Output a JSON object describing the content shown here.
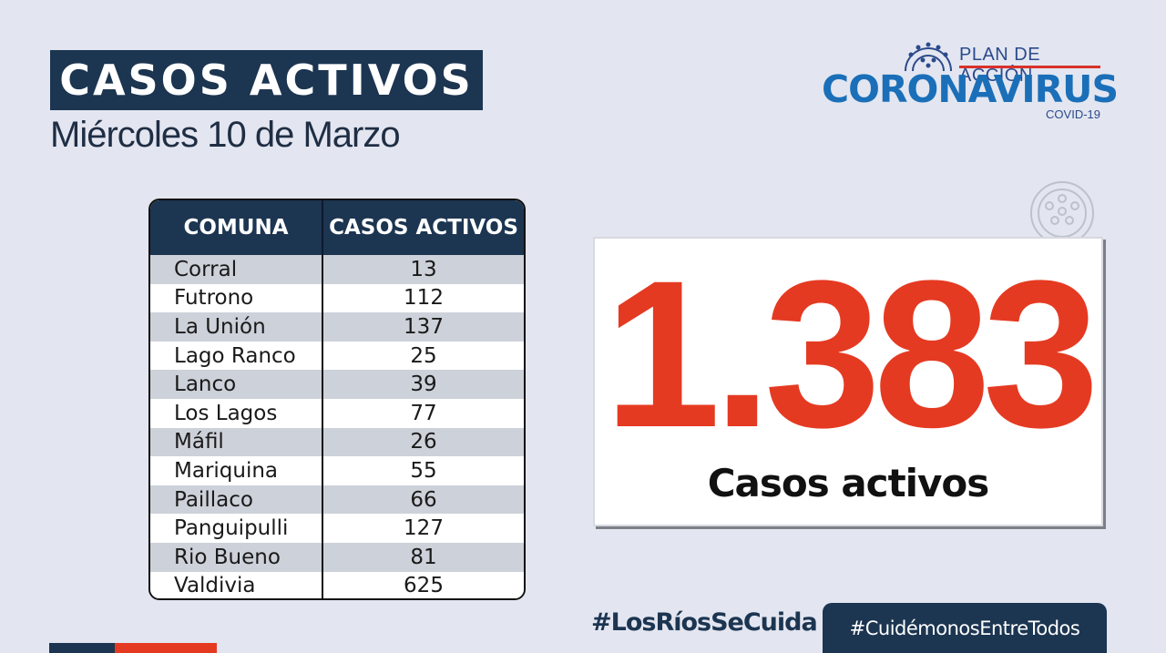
{
  "header": {
    "title": "CASOS ACTIVOS",
    "date": "Miércoles 10 de Marzo"
  },
  "logo": {
    "line1": "PLAN DE ACCIÓN",
    "line2": "CORONAVIRUS",
    "line3": "COVID-19",
    "icon": "coronavirus-icon"
  },
  "table": {
    "headers": [
      "COMUNA",
      "CASOS ACTIVOS"
    ],
    "rows": [
      [
        "Corral",
        "13"
      ],
      [
        "Futrono",
        "112"
      ],
      [
        "La Unión",
        "137"
      ],
      [
        "Lago Ranco",
        "25"
      ],
      [
        "Lanco",
        "39"
      ],
      [
        "Los Lagos",
        "77"
      ],
      [
        "Máfil",
        "26"
      ],
      [
        "Mariquina",
        "55"
      ],
      [
        "Paillaco",
        "66"
      ],
      [
        "Panguipulli",
        "127"
      ],
      [
        "Rio Bueno",
        "81"
      ],
      [
        "Valdivia",
        "625"
      ]
    ]
  },
  "total": {
    "value": "1.383",
    "label": "Casos activos"
  },
  "footer": {
    "hashtag_primary": "#LosRíosSeCuida",
    "hashtag_secondary": "#CuidémonosEntreTodos"
  },
  "colors": {
    "navy": "#1c3551",
    "red": "#e53a22",
    "blue": "#1b6fb8",
    "background": "#e3e6f0"
  }
}
